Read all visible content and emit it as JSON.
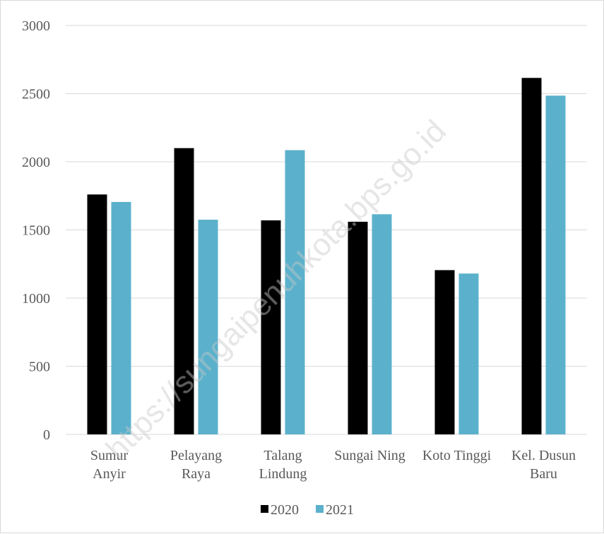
{
  "chart_data": {
    "type": "bar",
    "categories": [
      [
        "Sumur",
        "Anyir"
      ],
      [
        "Pelayang",
        "Raya"
      ],
      [
        "Talang",
        "Lindung"
      ],
      [
        "Sungai Ning"
      ],
      [
        "Koto Tinggi"
      ],
      [
        "Kel. Dusun",
        "Baru"
      ]
    ],
    "series": [
      {
        "name": "2020",
        "color": "#000000",
        "values": [
          1760,
          2100,
          1570,
          1560,
          1205,
          2615
        ]
      },
      {
        "name": "2021",
        "color": "#5bb1cc",
        "values": [
          1705,
          1575,
          2085,
          1615,
          1180,
          2485
        ]
      }
    ],
    "ylim": [
      0,
      3000
    ],
    "yticks": [
      0,
      500,
      1000,
      1500,
      2000,
      2500,
      3000
    ],
    "grid": true,
    "legend_position": "bottom"
  },
  "watermark": "https://sungaipenuhkota.bps.go.id"
}
